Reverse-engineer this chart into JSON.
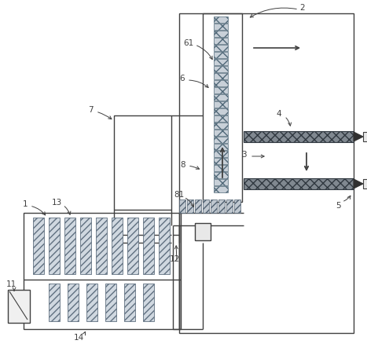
{
  "bg_color": "#ffffff",
  "line_color": "#404040",
  "label_color": "#404040",
  "fig_width": 4.67,
  "fig_height": 4.39,
  "dpi": 100,
  "lw": 1.0
}
